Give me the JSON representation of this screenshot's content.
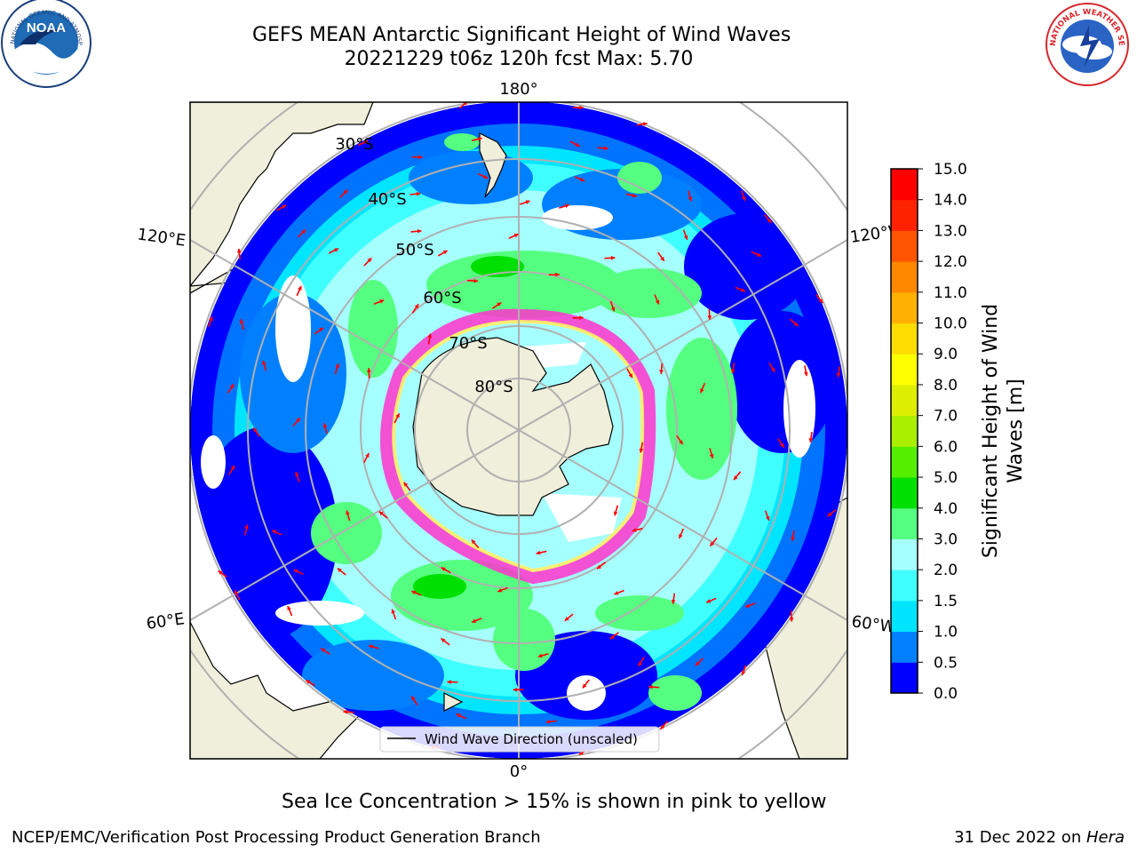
{
  "header": {
    "title_line1": "GEFS MEAN Antarctic Significant Height of Wind Waves",
    "title_line2": "20221229 t06z 120h fcst   Max: 5.70"
  },
  "logos": {
    "left": {
      "name": "noaa-logo",
      "text": "NOAA",
      "ring_text": "NATIONAL OCEANIC AND ATMOSPHERIC ADMINISTRATION · U.S. DEPARTMENT OF COMMERCE",
      "color": "#1f6bb5"
    },
    "right": {
      "name": "nws-logo",
      "ring_text": "NATIONAL WEATHER SERVICE",
      "color": "#d7262b"
    }
  },
  "map": {
    "projection": "south-polar-stereographic",
    "longitude_labels": [
      "180°",
      "120°E",
      "120°W",
      "60°E",
      "60°W",
      "0°"
    ],
    "latitude_labels": [
      "30°S",
      "40°S",
      "50°S",
      "60°S",
      "70°S",
      "80°S"
    ],
    "colors": {
      "land": "#efefdb",
      "ocean_low": "#0000ff",
      "grid": "#b0b0b0",
      "arrow": "#ff0000",
      "ice": "#ff33cc"
    }
  },
  "legend": {
    "entry": "Wind Wave Direction (unscaled)"
  },
  "colorbar": {
    "label_line1": "Significant Height of Wind",
    "label_line2": "Waves [m]",
    "ticks": [
      "0.0",
      "0.5",
      "1.0",
      "1.5",
      "2.0",
      "3.0",
      "4.0",
      "5.0",
      "6.0",
      "7.0",
      "8.0",
      "9.0",
      "10.0",
      "11.0",
      "12.0",
      "13.0",
      "14.0",
      "15.0"
    ],
    "colors": [
      "#0000ff",
      "#0080ff",
      "#00e5ff",
      "#40ffff",
      "#a6ffff",
      "#55ff80",
      "#00e000",
      "#55ee00",
      "#aaee00",
      "#ddee00",
      "#ffff00",
      "#ffdd00",
      "#ffb000",
      "#ff8800",
      "#ff5500",
      "#ff2200",
      "#ff0000"
    ]
  },
  "captions": {
    "sea_ice": "Sea Ice Concentration > 15% is shown in pink to yellow"
  },
  "footer": {
    "left": "NCEP/EMC/Verification Post Processing Product Generation Branch",
    "right_prefix": "31 Dec 2022 on ",
    "right_host": "Hera"
  }
}
